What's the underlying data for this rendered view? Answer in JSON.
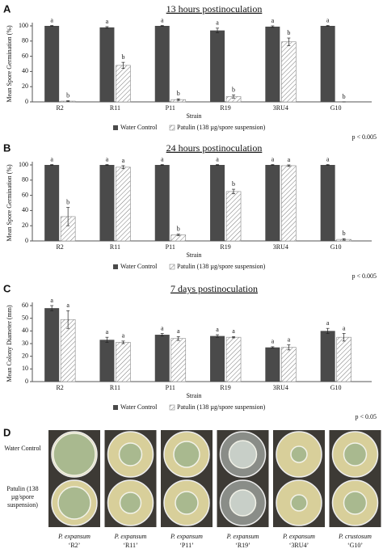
{
  "chart_data": [
    {
      "type": "bar",
      "panel": "A",
      "title": "13 hours postinoculation",
      "x_label": "Strain",
      "y_label": "Mean Spore Germination (%)",
      "categories": [
        "R2",
        "R11",
        "P11",
        "R19",
        "3RU4",
        "G10"
      ],
      "series": [
        {
          "name": "Water Control",
          "color": "#4a4a4a",
          "values": [
            100,
            98,
            100,
            94,
            99,
            100
          ],
          "errors": [
            0.5,
            1,
            0.5,
            3,
            1,
            0.5
          ],
          "letters": [
            "a",
            "a",
            "a",
            "a",
            "a",
            "a"
          ]
        },
        {
          "name": "Patulin (138 µg/spore suspension)",
          "color": "#888888",
          "values": [
            1,
            48,
            3,
            7,
            79,
            0
          ],
          "errors": [
            0.5,
            4,
            1,
            2,
            5,
            0
          ],
          "letters": [
            "b",
            "b",
            "b",
            "b",
            "b",
            "b"
          ]
        }
      ],
      "ylim": [
        0,
        100
      ],
      "yticks": [
        0,
        20,
        40,
        60,
        80,
        100
      ],
      "annotation": "p < 0.005"
    },
    {
      "type": "bar",
      "panel": "B",
      "title": "24 hours postinoculation",
      "x_label": "Strain",
      "y_label": "Mean Spore Germination (%)",
      "categories": [
        "R2",
        "R11",
        "P11",
        "R19",
        "3RU4",
        "G10"
      ],
      "series": [
        {
          "name": "Water Control",
          "color": "#4a4a4a",
          "values": [
            100,
            100,
            100,
            100,
            100,
            100
          ],
          "errors": [
            0.5,
            0.5,
            0.5,
            0.5,
            0.5,
            0.5
          ],
          "letters": [
            "a",
            "a",
            "a",
            "a",
            "a",
            "a"
          ]
        },
        {
          "name": "Patulin (138 µg/spore suspension)",
          "color": "#888888",
          "values": [
            32,
            97,
            8,
            65,
            99,
            2
          ],
          "errors": [
            12,
            2,
            1,
            3,
            1,
            1
          ],
          "letters": [
            "b",
            "a",
            "b",
            "b",
            "a",
            "b"
          ]
        }
      ],
      "ylim": [
        0,
        100
      ],
      "yticks": [
        0,
        20,
        40,
        60,
        80,
        100
      ],
      "annotation": "p < 0.005"
    },
    {
      "type": "bar",
      "panel": "C",
      "title": "7 days postinoculation",
      "x_label": "Strain",
      "y_label": "Mean Colony Diameter (mm)",
      "categories": [
        "R2",
        "R11",
        "P11",
        "R19",
        "3RU4",
        "G10"
      ],
      "series": [
        {
          "name": "Water Control",
          "color": "#4a4a4a",
          "values": [
            58,
            33,
            37,
            36,
            27,
            40
          ],
          "errors": [
            2,
            2,
            1,
            1,
            0.5,
            2
          ],
          "letters": [
            "a",
            "a",
            "a",
            "a",
            "a",
            "a"
          ]
        },
        {
          "name": "Patulin (138 µg/spore suspension)",
          "color": "#888888",
          "values": [
            49,
            31,
            34,
            35,
            27,
            35
          ],
          "errors": [
            7,
            1,
            1.5,
            0.5,
            2,
            3
          ],
          "letters": [
            "a",
            "a",
            "a",
            "a",
            "a",
            "a"
          ]
        }
      ],
      "ylim": [
        0,
        60
      ],
      "yticks": [
        0,
        10,
        20,
        30,
        40,
        50,
        60
      ],
      "annotation": "p < 0.05"
    }
  ],
  "panel_d": {
    "label": "D",
    "row_labels": [
      "Water Control",
      "Patulin (138 µg/spore suspension)"
    ],
    "strains": [
      {
        "species": "P. expansum",
        "name": "‘R2’"
      },
      {
        "species": "P. expansum",
        "name": "‘R11’"
      },
      {
        "species": "P. expansum",
        "name": "‘P11’"
      },
      {
        "species": "P. expansum",
        "name": "‘R19’"
      },
      {
        "species": "P. expansum",
        "name": "‘3RU4’"
      },
      {
        "species": "P. crustosum",
        "name": "‘G10’"
      }
    ]
  }
}
